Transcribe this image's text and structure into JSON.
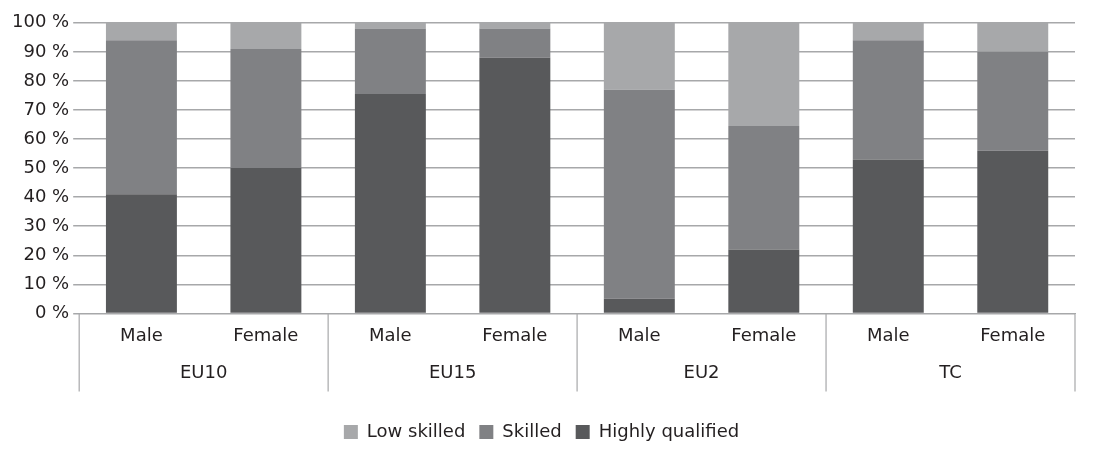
{
  "chart_data": {
    "type": "bar",
    "stacked": true,
    "categories": [
      "Male",
      "Female",
      "Male",
      "Female",
      "Male",
      "Female",
      "Male",
      "Female"
    ],
    "series": [
      {
        "name": "Highly qualified",
        "color": "#58595b",
        "values": [
          41,
          50,
          75.5,
          88,
          5,
          22,
          53,
          56
        ]
      },
      {
        "name": "Skilled",
        "color": "#808184",
        "values": [
          53,
          41,
          22.5,
          10,
          72,
          42.5,
          41,
          34
        ]
      },
      {
        "name": "Low skilled",
        "color": "#a7a8aa",
        "values": [
          6,
          9,
          2,
          2,
          23,
          35.5,
          6,
          10
        ]
      }
    ],
    "ylim": [
      0,
      100
    ],
    "yticks": [
      {
        "value": 0,
        "label": "0 %"
      },
      {
        "value": 10,
        "label": "10 %"
      },
      {
        "value": 20,
        "label": "20 %"
      },
      {
        "value": 30,
        "label": "30 %"
      },
      {
        "value": 40,
        "label": "40 %"
      },
      {
        "value": 50,
        "label": "50 %"
      },
      {
        "value": 60,
        "label": "60 %"
      },
      {
        "value": 70,
        "label": "70 %"
      },
      {
        "value": 80,
        "label": "80 %"
      },
      {
        "value": 90,
        "label": "90 %"
      },
      {
        "value": 100,
        "label": "100 %"
      }
    ],
    "annotations": [
      "EU10",
      "EU15",
      "EU2",
      "TC"
    ],
    "grid": "y",
    "legend": "bottom"
  }
}
